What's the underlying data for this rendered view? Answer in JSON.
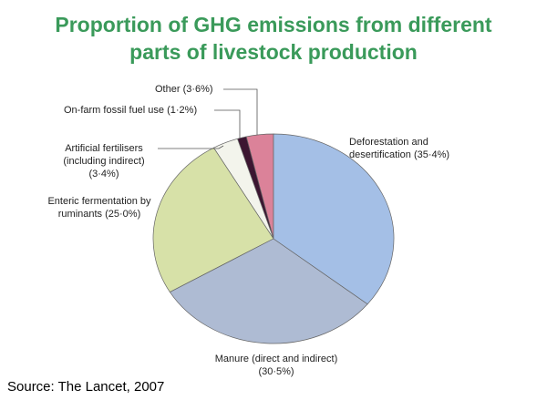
{
  "chart_data": {
    "type": "pie",
    "title": "Proportion of GHG emissions from different parts of livestock production",
    "source": "Source: The Lancet, 2007",
    "categories": [
      "Deforestation and desertification",
      "Manure (direct and indirect)",
      "Enteric fermentation by ruminants",
      "Artificial fertilisers (including indirect)",
      "On-farm fossil fuel use",
      "Other"
    ],
    "values": [
      35.4,
      30.5,
      25.0,
      3.4,
      1.2,
      3.6
    ],
    "value_labels": [
      "(35·4%)",
      "(30·5%)",
      "(25·0%)",
      "(3·4%)",
      "(1·2%)",
      "(3·6%)"
    ],
    "colors": [
      "#a4bfe6",
      "#aebbd3",
      "#d7e1a8",
      "#f3f4ec",
      "#3c1631",
      "#db8299"
    ]
  }
}
